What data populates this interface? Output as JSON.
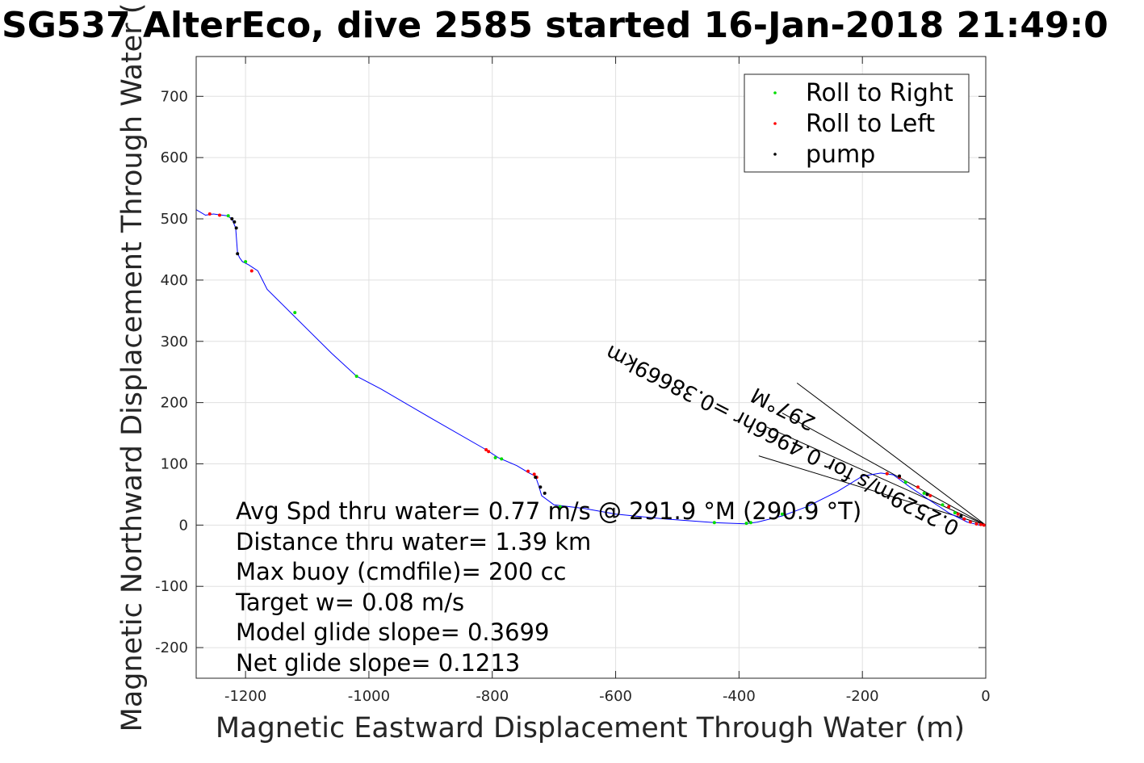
{
  "chart_data": {
    "type": "scatter",
    "title": "SG537 AlterEco, dive 2585 started 16-Jan-2018 21:49:0",
    "xlabel": "Magnetic Eastward Displacement Through Water (m)",
    "ylabel": "Magnetic Northward Displacement Through Water (",
    "xlim": [
      -1280,
      0
    ],
    "ylim": [
      -250,
      765
    ],
    "xticks": [
      -1200,
      -1000,
      -800,
      -600,
      -400,
      -200,
      0
    ],
    "yticks": [
      -200,
      -100,
      0,
      100,
      200,
      300,
      400,
      500,
      600,
      700
    ],
    "grid": true,
    "legend_position": "top-right",
    "colors": {
      "track": "#0000ff",
      "roll_right": "#00dd00",
      "roll_left": "#ff0000",
      "pump": "#000000",
      "grid": "#e0e0e0"
    },
    "track": {
      "x": [
        -1280,
        -1265,
        -1252,
        -1245,
        -1230,
        -1222,
        -1220,
        -1216,
        -1213,
        -1210,
        -1205,
        -1195,
        -1180,
        -1165,
        -1125,
        -1060,
        -1020,
        -980,
        -900,
        -810,
        -790,
        -760,
        -740,
        -730,
        -725,
        -720,
        -700,
        -650,
        -600,
        -520,
        -440,
        -390,
        -370,
        -330,
        -290,
        -240,
        -200,
        -170,
        -150,
        -120,
        -90,
        -60,
        -30,
        -10,
        0
      ],
      "y": [
        515,
        506,
        508,
        507,
        505,
        500,
        495,
        485,
        445,
        437,
        430,
        425,
        415,
        385,
        345,
        280,
        243,
        222,
        175,
        123,
        110,
        97,
        85,
        80,
        65,
        48,
        33,
        27,
        18,
        10,
        4,
        2,
        5,
        15,
        30,
        55,
        80,
        85,
        82,
        60,
        40,
        20,
        5,
        0,
        0
      ]
    },
    "series": [
      {
        "name": "Roll to Right",
        "x": [
          -1228,
          -1200,
          -1120,
          -1020,
          -795,
          -785,
          -690,
          -440,
          -388,
          -381,
          -330,
          -290,
          -160,
          -130,
          -100,
          -70,
          -50
        ],
        "y": [
          505,
          430,
          347,
          243,
          110,
          108,
          30,
          4,
          3,
          4,
          18,
          28,
          84,
          70,
          52,
          33,
          20
        ]
      },
      {
        "name": "Roll to Left",
        "x": [
          -1258,
          -1242,
          -1190,
          -810,
          -806,
          -742,
          -732,
          -728,
          -160,
          -140,
          -110,
          -90,
          -60,
          -45,
          -35,
          -25,
          -15,
          -8,
          -3
        ],
        "y": [
          508,
          506,
          415,
          123,
          120,
          88,
          83,
          78,
          84,
          78,
          62,
          48,
          30,
          18,
          10,
          5,
          2,
          1,
          0
        ]
      },
      {
        "name": "pump",
        "x": [
          -1222,
          -1218,
          -1215,
          -1213,
          -730,
          -722,
          -715,
          -140,
          -95,
          -40
        ],
        "y": [
          500,
          495,
          485,
          443,
          78,
          62,
          52,
          80,
          50,
          15
        ]
      }
    ],
    "annotation_lines": [
      {
        "x": [
          -306,
          0
        ],
        "y": [
          232,
          0
        ]
      },
      {
        "x": [
          -368,
          0
        ],
        "y": [
          113,
          0
        ]
      },
      {
        "x": [
          -330,
          0
        ],
        "y": [
          183,
          0
        ]
      },
      {
        "x": [
          -355,
          0
        ],
        "y": [
          160,
          0
        ]
      }
    ],
    "annotations": [
      "0.2529m/s for 0.4966hr =0.38669km",
      "297°M"
    ],
    "stats": [
      "Avg Spd thru water=  0.77 m/s @ 291.9 °M (290.9 °T)",
      "Distance thru water=  1.39 km",
      "Max buoy (cmdfile)= 200 cc",
      "Target w= 0.08 m/s",
      "Model glide slope= 0.3699",
      "Net glide slope= 0.1213"
    ]
  }
}
